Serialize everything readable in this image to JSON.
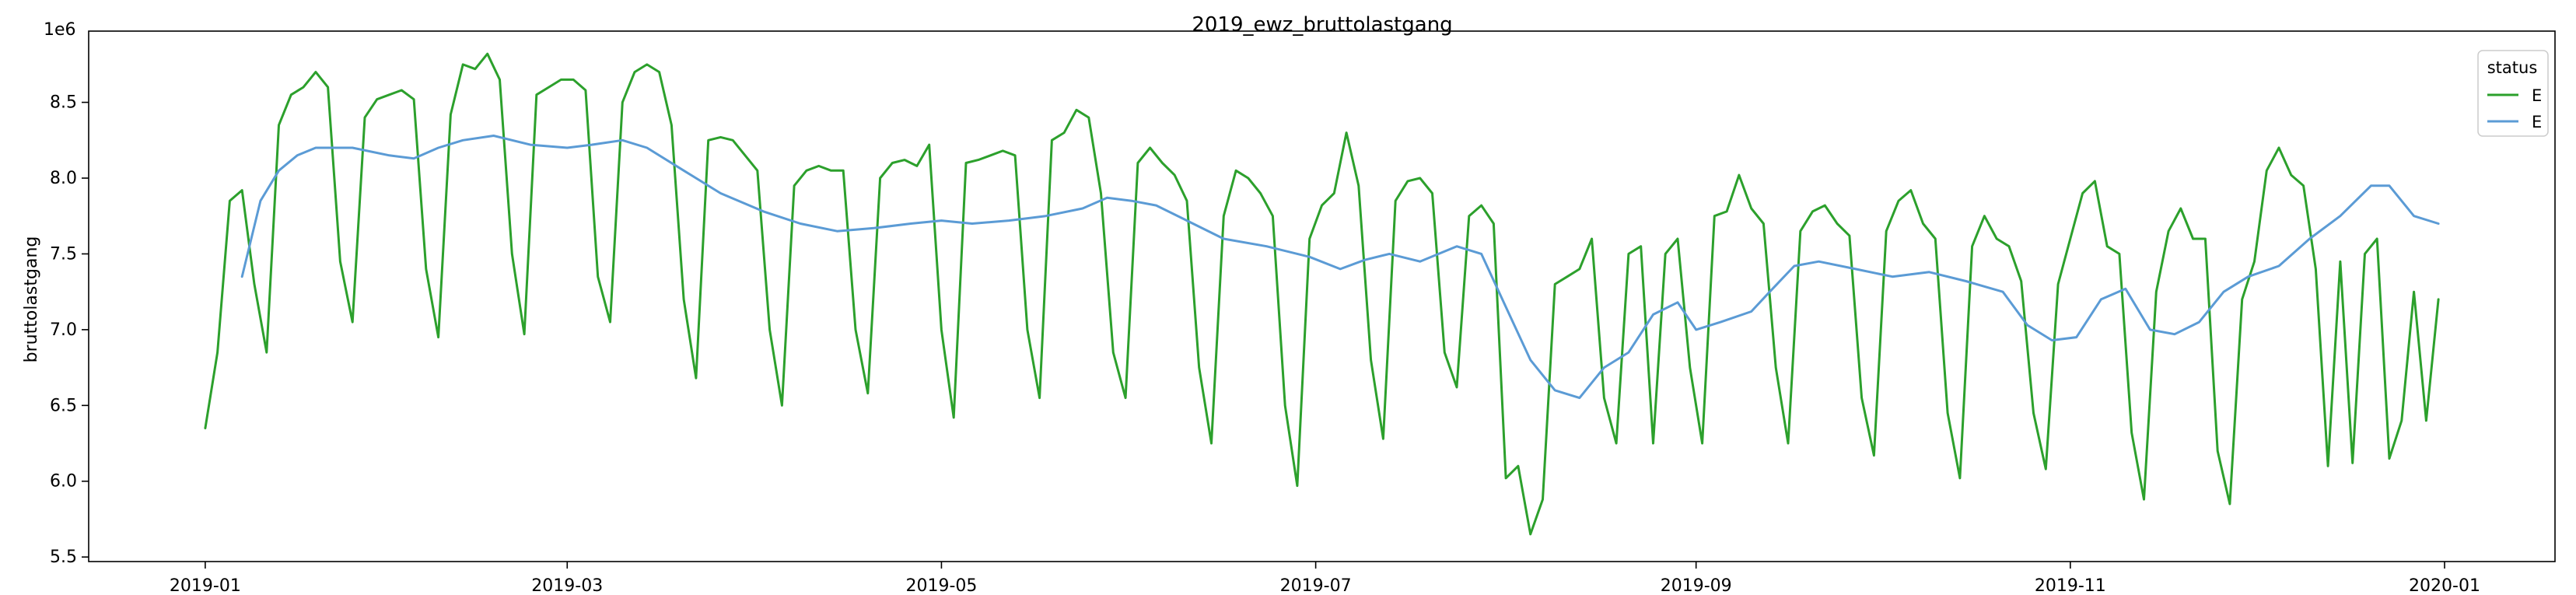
{
  "chart_data": {
    "type": "line",
    "title": "2019_ewz_bruttolastgang",
    "xlabel": "",
    "ylabel": "bruttolastgang",
    "y_offset_label": "1e6",
    "y_scale": 1000000,
    "xlim": [
      "2018-12-13",
      "2020-01-19"
    ],
    "ylim": [
      5.47,
      8.97
    ],
    "x_tick_labels": [
      "2019-01",
      "2019-03",
      "2019-05",
      "2019-07",
      "2019-09",
      "2019-11",
      "2020-01"
    ],
    "x_ticks": [
      "2019-01-01",
      "2019-03-01",
      "2019-05-01",
      "2019-07-01",
      "2019-09-01",
      "2019-11-01",
      "2020-01-01"
    ],
    "y_tick_labels": [
      "5.5",
      "6.0",
      "6.5",
      "7.0",
      "7.5",
      "8.0",
      "8.5"
    ],
    "y_ticks": [
      5.5,
      6.0,
      6.5,
      7.0,
      7.5,
      8.0,
      8.5
    ],
    "grid": false,
    "legend": {
      "title": "status",
      "placement": "top-right",
      "entries": [
        "E",
        "E"
      ]
    },
    "series": [
      {
        "name": "E",
        "color": "#2ca02c",
        "points": [
          [
            "2019-01-01",
            6.35
          ],
          [
            "2019-01-03",
            6.85
          ],
          [
            "2019-01-05",
            7.85
          ],
          [
            "2019-01-07",
            7.92
          ],
          [
            "2019-01-09",
            7.3
          ],
          [
            "2019-01-11",
            6.85
          ],
          [
            "2019-01-13",
            8.35
          ],
          [
            "2019-01-15",
            8.55
          ],
          [
            "2019-01-17",
            8.6
          ],
          [
            "2019-01-19",
            8.7
          ],
          [
            "2019-01-21",
            8.6
          ],
          [
            "2019-01-23",
            7.45
          ],
          [
            "2019-01-25",
            7.05
          ],
          [
            "2019-01-27",
            8.4
          ],
          [
            "2019-01-29",
            8.52
          ],
          [
            "2019-01-31",
            8.55
          ],
          [
            "2019-02-02",
            8.58
          ],
          [
            "2019-02-04",
            8.52
          ],
          [
            "2019-02-06",
            7.4
          ],
          [
            "2019-02-08",
            6.95
          ],
          [
            "2019-02-10",
            8.42
          ],
          [
            "2019-02-12",
            8.75
          ],
          [
            "2019-02-14",
            8.72
          ],
          [
            "2019-02-16",
            8.82
          ],
          [
            "2019-02-18",
            8.65
          ],
          [
            "2019-02-20",
            7.5
          ],
          [
            "2019-02-22",
            6.97
          ],
          [
            "2019-02-24",
            8.55
          ],
          [
            "2019-02-26",
            8.6
          ],
          [
            "2019-02-28",
            8.65
          ],
          [
            "2019-03-02",
            8.65
          ],
          [
            "2019-03-04",
            8.58
          ],
          [
            "2019-03-06",
            7.35
          ],
          [
            "2019-03-08",
            7.05
          ],
          [
            "2019-03-10",
            8.5
          ],
          [
            "2019-03-12",
            8.7
          ],
          [
            "2019-03-14",
            8.75
          ],
          [
            "2019-03-16",
            8.7
          ],
          [
            "2019-03-18",
            8.35
          ],
          [
            "2019-03-20",
            7.2
          ],
          [
            "2019-03-22",
            6.68
          ],
          [
            "2019-03-24",
            8.25
          ],
          [
            "2019-03-26",
            8.27
          ],
          [
            "2019-03-28",
            8.25
          ],
          [
            "2019-03-30",
            8.15
          ],
          [
            "2019-04-01",
            8.05
          ],
          [
            "2019-04-03",
            7.0
          ],
          [
            "2019-04-05",
            6.5
          ],
          [
            "2019-04-07",
            7.95
          ],
          [
            "2019-04-09",
            8.05
          ],
          [
            "2019-04-11",
            8.08
          ],
          [
            "2019-04-13",
            8.05
          ],
          [
            "2019-04-15",
            8.05
          ],
          [
            "2019-04-17",
            7.0
          ],
          [
            "2019-04-19",
            6.58
          ],
          [
            "2019-04-21",
            8.0
          ],
          [
            "2019-04-23",
            8.1
          ],
          [
            "2019-04-25",
            8.12
          ],
          [
            "2019-04-27",
            8.08
          ],
          [
            "2019-04-29",
            8.22
          ],
          [
            "2019-05-01",
            7.0
          ],
          [
            "2019-05-03",
            6.42
          ],
          [
            "2019-05-05",
            8.1
          ],
          [
            "2019-05-07",
            8.12
          ],
          [
            "2019-05-09",
            8.15
          ],
          [
            "2019-05-11",
            8.18
          ],
          [
            "2019-05-13",
            8.15
          ],
          [
            "2019-05-15",
            7.0
          ],
          [
            "2019-05-17",
            6.55
          ],
          [
            "2019-05-19",
            8.25
          ],
          [
            "2019-05-21",
            8.3
          ],
          [
            "2019-05-23",
            8.45
          ],
          [
            "2019-05-25",
            8.4
          ],
          [
            "2019-05-27",
            7.9
          ],
          [
            "2019-05-29",
            6.85
          ],
          [
            "2019-05-31",
            6.55
          ],
          [
            "2019-06-02",
            8.1
          ],
          [
            "2019-06-04",
            8.2
          ],
          [
            "2019-06-06",
            8.1
          ],
          [
            "2019-06-08",
            8.02
          ],
          [
            "2019-06-10",
            7.85
          ],
          [
            "2019-06-12",
            6.75
          ],
          [
            "2019-06-14",
            6.25
          ],
          [
            "2019-06-16",
            7.75
          ],
          [
            "2019-06-18",
            8.05
          ],
          [
            "2019-06-20",
            8.0
          ],
          [
            "2019-06-22",
            7.9
          ],
          [
            "2019-06-24",
            7.75
          ],
          [
            "2019-06-26",
            6.5
          ],
          [
            "2019-06-28",
            5.97
          ],
          [
            "2019-06-30",
            7.6
          ],
          [
            "2019-07-02",
            7.82
          ],
          [
            "2019-07-04",
            7.9
          ],
          [
            "2019-07-06",
            8.3
          ],
          [
            "2019-07-08",
            7.95
          ],
          [
            "2019-07-10",
            6.8
          ],
          [
            "2019-07-12",
            6.28
          ],
          [
            "2019-07-14",
            7.85
          ],
          [
            "2019-07-16",
            7.98
          ],
          [
            "2019-07-18",
            8.0
          ],
          [
            "2019-07-20",
            7.9
          ],
          [
            "2019-07-22",
            6.85
          ],
          [
            "2019-07-24",
            6.62
          ],
          [
            "2019-07-26",
            7.75
          ],
          [
            "2019-07-28",
            7.82
          ],
          [
            "2019-07-30",
            7.7
          ],
          [
            "2019-08-01",
            6.02
          ],
          [
            "2019-08-03",
            6.1
          ],
          [
            "2019-08-05",
            5.65
          ],
          [
            "2019-08-07",
            5.88
          ],
          [
            "2019-08-09",
            7.3
          ],
          [
            "2019-08-11",
            7.35
          ],
          [
            "2019-08-13",
            7.4
          ],
          [
            "2019-08-15",
            7.6
          ],
          [
            "2019-08-17",
            6.55
          ],
          [
            "2019-08-19",
            6.25
          ],
          [
            "2019-08-21",
            7.5
          ],
          [
            "2019-08-23",
            7.55
          ],
          [
            "2019-08-25",
            6.25
          ],
          [
            "2019-08-27",
            7.5
          ],
          [
            "2019-08-29",
            7.6
          ],
          [
            "2019-08-31",
            6.75
          ],
          [
            "2019-09-02",
            6.25
          ],
          [
            "2019-09-04",
            7.75
          ],
          [
            "2019-09-06",
            7.78
          ],
          [
            "2019-09-08",
            8.02
          ],
          [
            "2019-09-10",
            7.8
          ],
          [
            "2019-09-12",
            7.7
          ],
          [
            "2019-09-14",
            6.75
          ],
          [
            "2019-09-16",
            6.25
          ],
          [
            "2019-09-18",
            7.65
          ],
          [
            "2019-09-20",
            7.78
          ],
          [
            "2019-09-22",
            7.82
          ],
          [
            "2019-09-24",
            7.7
          ],
          [
            "2019-09-26",
            7.62
          ],
          [
            "2019-09-28",
            6.55
          ],
          [
            "2019-09-30",
            6.17
          ],
          [
            "2019-10-02",
            7.65
          ],
          [
            "2019-10-04",
            7.85
          ],
          [
            "2019-10-06",
            7.92
          ],
          [
            "2019-10-08",
            7.7
          ],
          [
            "2019-10-10",
            7.6
          ],
          [
            "2019-10-12",
            6.45
          ],
          [
            "2019-10-14",
            6.02
          ],
          [
            "2019-10-16",
            7.55
          ],
          [
            "2019-10-18",
            7.75
          ],
          [
            "2019-10-20",
            7.6
          ],
          [
            "2019-10-22",
            7.55
          ],
          [
            "2019-10-24",
            7.32
          ],
          [
            "2019-10-26",
            6.45
          ],
          [
            "2019-10-28",
            6.08
          ],
          [
            "2019-10-30",
            7.3
          ],
          [
            "2019-11-01",
            7.6
          ],
          [
            "2019-11-03",
            7.9
          ],
          [
            "2019-11-05",
            7.98
          ],
          [
            "2019-11-07",
            7.55
          ],
          [
            "2019-11-09",
            7.5
          ],
          [
            "2019-11-11",
            6.32
          ],
          [
            "2019-11-13",
            5.88
          ],
          [
            "2019-11-15",
            7.25
          ],
          [
            "2019-11-17",
            7.65
          ],
          [
            "2019-11-19",
            7.8
          ],
          [
            "2019-11-21",
            7.6
          ],
          [
            "2019-11-23",
            7.6
          ],
          [
            "2019-11-25",
            6.2
          ],
          [
            "2019-11-27",
            5.85
          ],
          [
            "2019-11-29",
            7.2
          ],
          [
            "2019-12-01",
            7.45
          ],
          [
            "2019-12-03",
            8.05
          ],
          [
            "2019-12-05",
            8.2
          ],
          [
            "2019-12-07",
            8.02
          ],
          [
            "2019-12-09",
            7.95
          ],
          [
            "2019-12-11",
            7.4
          ],
          [
            "2019-12-13",
            6.1
          ],
          [
            "2019-12-15",
            7.45
          ],
          [
            "2019-12-17",
            6.12
          ],
          [
            "2019-12-19",
            7.5
          ],
          [
            "2019-12-21",
            7.6
          ],
          [
            "2019-12-23",
            6.15
          ],
          [
            "2019-12-25",
            6.4
          ],
          [
            "2019-12-27",
            7.25
          ],
          [
            "2019-12-29",
            6.4
          ],
          [
            "2019-12-31",
            7.2
          ]
        ]
      },
      {
        "name": "E",
        "color": "#5b9bd5",
        "points": [
          [
            "2019-01-07",
            7.35
          ],
          [
            "2019-01-10",
            7.85
          ],
          [
            "2019-01-13",
            8.05
          ],
          [
            "2019-01-16",
            8.15
          ],
          [
            "2019-01-19",
            8.2
          ],
          [
            "2019-01-25",
            8.2
          ],
          [
            "2019-01-31",
            8.15
          ],
          [
            "2019-02-04",
            8.13
          ],
          [
            "2019-02-08",
            8.2
          ],
          [
            "2019-02-12",
            8.25
          ],
          [
            "2019-02-17",
            8.28
          ],
          [
            "2019-02-23",
            8.22
          ],
          [
            "2019-03-01",
            8.2
          ],
          [
            "2019-03-05",
            8.22
          ],
          [
            "2019-03-10",
            8.25
          ],
          [
            "2019-03-14",
            8.2
          ],
          [
            "2019-03-20",
            8.05
          ],
          [
            "2019-03-26",
            7.9
          ],
          [
            "2019-04-02",
            7.78
          ],
          [
            "2019-04-08",
            7.7
          ],
          [
            "2019-04-14",
            7.65
          ],
          [
            "2019-04-20",
            7.67
          ],
          [
            "2019-04-26",
            7.7
          ],
          [
            "2019-05-01",
            7.72
          ],
          [
            "2019-05-06",
            7.7
          ],
          [
            "2019-05-12",
            7.72
          ],
          [
            "2019-05-18",
            7.75
          ],
          [
            "2019-05-24",
            7.8
          ],
          [
            "2019-05-28",
            7.87
          ],
          [
            "2019-06-01",
            7.85
          ],
          [
            "2019-06-05",
            7.82
          ],
          [
            "2019-06-10",
            7.72
          ],
          [
            "2019-06-16",
            7.6
          ],
          [
            "2019-06-23",
            7.55
          ],
          [
            "2019-06-30",
            7.48
          ],
          [
            "2019-07-05",
            7.4
          ],
          [
            "2019-07-09",
            7.46
          ],
          [
            "2019-07-13",
            7.5
          ],
          [
            "2019-07-18",
            7.45
          ],
          [
            "2019-07-24",
            7.55
          ],
          [
            "2019-07-28",
            7.5
          ],
          [
            "2019-08-01",
            7.15
          ],
          [
            "2019-08-05",
            6.8
          ],
          [
            "2019-08-09",
            6.6
          ],
          [
            "2019-08-13",
            6.55
          ],
          [
            "2019-08-17",
            6.75
          ],
          [
            "2019-08-21",
            6.85
          ],
          [
            "2019-08-25",
            7.1
          ],
          [
            "2019-08-29",
            7.18
          ],
          [
            "2019-09-01",
            7.0
          ],
          [
            "2019-09-05",
            7.05
          ],
          [
            "2019-09-10",
            7.12
          ],
          [
            "2019-09-13",
            7.25
          ],
          [
            "2019-09-17",
            7.42
          ],
          [
            "2019-09-21",
            7.45
          ],
          [
            "2019-09-27",
            7.4
          ],
          [
            "2019-10-03",
            7.35
          ],
          [
            "2019-10-09",
            7.38
          ],
          [
            "2019-10-15",
            7.32
          ],
          [
            "2019-10-21",
            7.25
          ],
          [
            "2019-10-25",
            7.03
          ],
          [
            "2019-10-29",
            6.93
          ],
          [
            "2019-11-02",
            6.95
          ],
          [
            "2019-11-06",
            7.2
          ],
          [
            "2019-11-10",
            7.27
          ],
          [
            "2019-11-14",
            7.0
          ],
          [
            "2019-11-18",
            6.97
          ],
          [
            "2019-11-22",
            7.05
          ],
          [
            "2019-11-26",
            7.25
          ],
          [
            "2019-11-30",
            7.35
          ],
          [
            "2019-12-05",
            7.42
          ],
          [
            "2019-12-10",
            7.6
          ],
          [
            "2019-12-15",
            7.75
          ],
          [
            "2019-12-20",
            7.95
          ],
          [
            "2019-12-23",
            7.95
          ],
          [
            "2019-12-27",
            7.75
          ],
          [
            "2019-12-31",
            7.7
          ]
        ]
      }
    ]
  }
}
